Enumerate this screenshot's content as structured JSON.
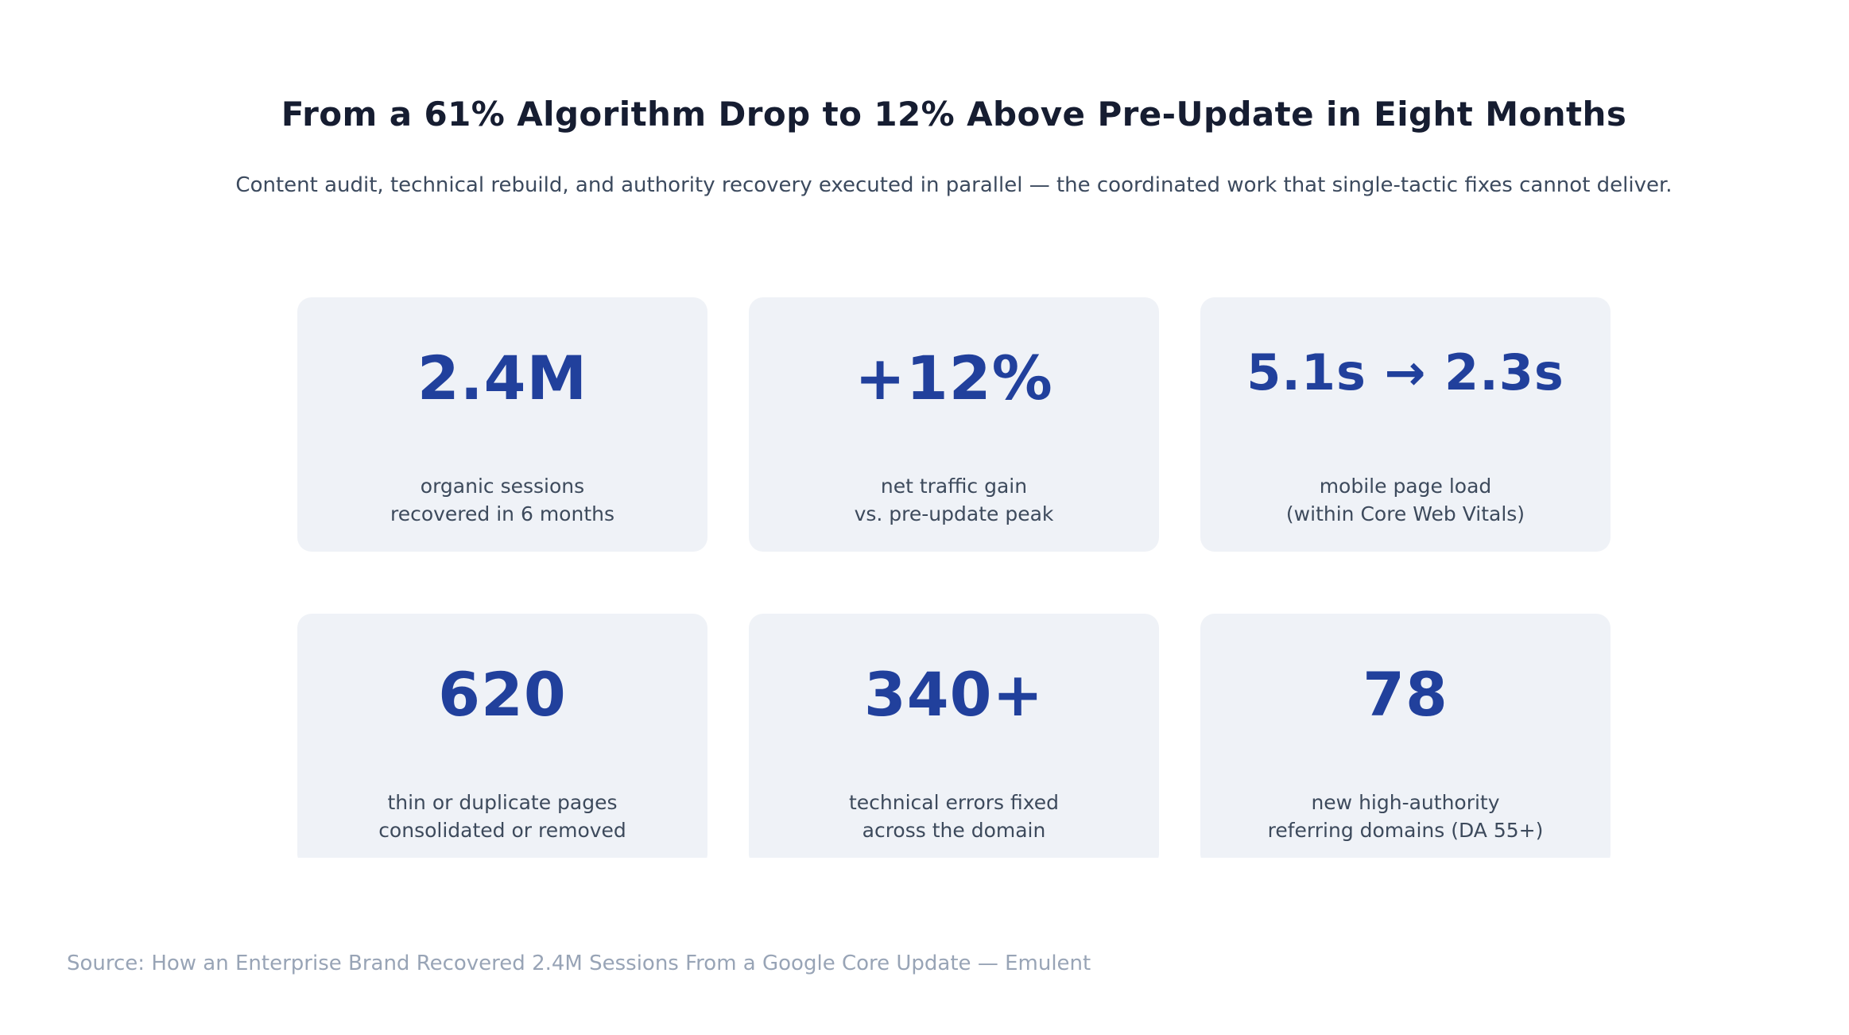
{
  "page": {
    "title": "From a 61% Algorithm Drop to 12% Above Pre-Update in Eight Months",
    "subtitle": "Content audit, technical rebuild, and authority recovery executed in parallel — the coordinated work that single-tactic fixes cannot deliver.",
    "source": "Source: How an Enterprise Brand Recovered 2.4M Sessions From a Google Core Update — Emulent"
  },
  "stats": [
    {
      "value": "2.4M",
      "label1": "organic sessions",
      "label2": "recovered in 6 months"
    },
    {
      "value": "+12%",
      "label1": "net traffic gain",
      "label2": "vs. pre-update peak"
    },
    {
      "value": "5.1s → 2.3s",
      "label1": "mobile page load",
      "label2": "(within Core Web Vitals)"
    },
    {
      "value": "620",
      "label1": "thin or duplicate pages",
      "label2": "consolidated or removed"
    },
    {
      "value": "340+",
      "label1": "technical errors fixed",
      "label2": "across the domain"
    },
    {
      "value": "78",
      "label1": "new high-authority",
      "label2": "referring domains (DA 55+)"
    }
  ],
  "colors": {
    "background": "#ffffff",
    "card_background": "#eff2f7",
    "stat_value": "#21409c",
    "title_text": "#161d31",
    "subtitle_text": "#3c4a5e",
    "label_text": "#3d4a5c",
    "source_text": "#98a4b6"
  },
  "chart_data": {
    "type": "table",
    "title": "From a 61% Algorithm Drop to 12% Above Pre-Update in Eight Months",
    "subtitle": "Content audit, technical rebuild, and authority recovery executed in parallel — the coordinated work that single-tactic fixes cannot deliver.",
    "source": "Source: How an Enterprise Brand Recovered 2.4M Sessions From a Google Core Update — Emulent",
    "layout": "3x2 stat-card grid",
    "stats": [
      {
        "value": "2.4M",
        "numeric": 2400000,
        "label": "organic sessions recovered in 6 months"
      },
      {
        "value": "+12%",
        "numeric": 12,
        "label": "net traffic gain vs. pre-update peak"
      },
      {
        "value": "5.1s → 2.3s",
        "numeric": [
          5.1,
          2.3
        ],
        "label": "mobile page load (within Core Web Vitals)"
      },
      {
        "value": "620",
        "numeric": 620,
        "label": "thin or duplicate pages consolidated or removed"
      },
      {
        "value": "340+",
        "numeric": 340,
        "label": "technical errors fixed across the domain"
      },
      {
        "value": "78",
        "numeric": 78,
        "label": "new high-authority referring domains (DA 55+)"
      }
    ]
  }
}
